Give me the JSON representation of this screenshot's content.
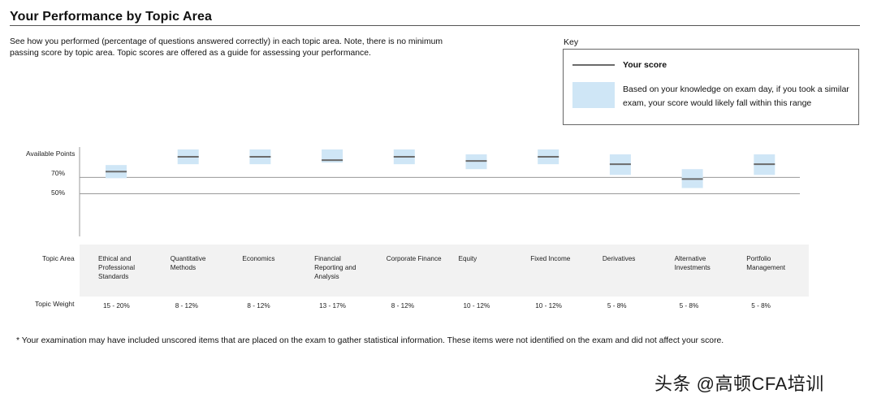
{
  "header": {
    "title": "Your Performance by Topic Area",
    "intro": "See how you performed (percentage of questions answered correctly) in each topic area. Note, there is no minimum passing score by topic area. Topic scores are offered as a guide for assessing your performance."
  },
  "key": {
    "label": "Key",
    "score_label": "Your score",
    "range_label": "Based on your knowledge on exam day, if you took a similar exam, your score would likely fall within this range"
  },
  "table": {
    "topic_area_label": "Topic Area",
    "topic_weight_label": "Topic Weight"
  },
  "chart_data": {
    "type": "range",
    "y_ticks": [
      {
        "label": "Available Points",
        "value": 100
      },
      {
        "label": "70%",
        "value": 70
      },
      {
        "label": "50%",
        "value": 50
      }
    ],
    "ylim": [
      5,
      100
    ],
    "grid": "reference lines at 70% and 50%",
    "categories": [
      "Ethical and Professional Standards",
      "Quantitative Methods",
      "Economics",
      "Financial Reporting and Analysis",
      "Corporate Finance",
      "Equity",
      "Fixed Income",
      "Derivatives",
      "Alternative Investments",
      "Portfolio Management"
    ],
    "weights": [
      "15 - 20%",
      "8 - 12%",
      "8 - 12%",
      "13 - 17%",
      "8 - 12%",
      "10 - 12%",
      "10 - 12%",
      "5 - 8%",
      "5 - 8%",
      "5 - 8%"
    ],
    "series": [
      {
        "name": "Your score",
        "values": [
          77,
          95,
          95,
          91,
          95,
          90,
          95,
          86,
          68,
          86
        ]
      }
    ],
    "ranges": [
      [
        69,
        85
      ],
      [
        86,
        104
      ],
      [
        86,
        104
      ],
      [
        88,
        104
      ],
      [
        86,
        104
      ],
      [
        80,
        98
      ],
      [
        86,
        104
      ],
      [
        73,
        98
      ],
      [
        57,
        80
      ],
      [
        73,
        98
      ]
    ],
    "colors": {
      "range": "#cfe6f6",
      "score": "#6b6b6b",
      "grid": "#9a9a9a",
      "axis": "#999999"
    }
  },
  "footnote": "* Your examination may have included unscored items that are placed on the exam to gather statistical information. These items were not identified on the exam and did not affect your score.",
  "watermark": "头条 @高顿CFA培训"
}
